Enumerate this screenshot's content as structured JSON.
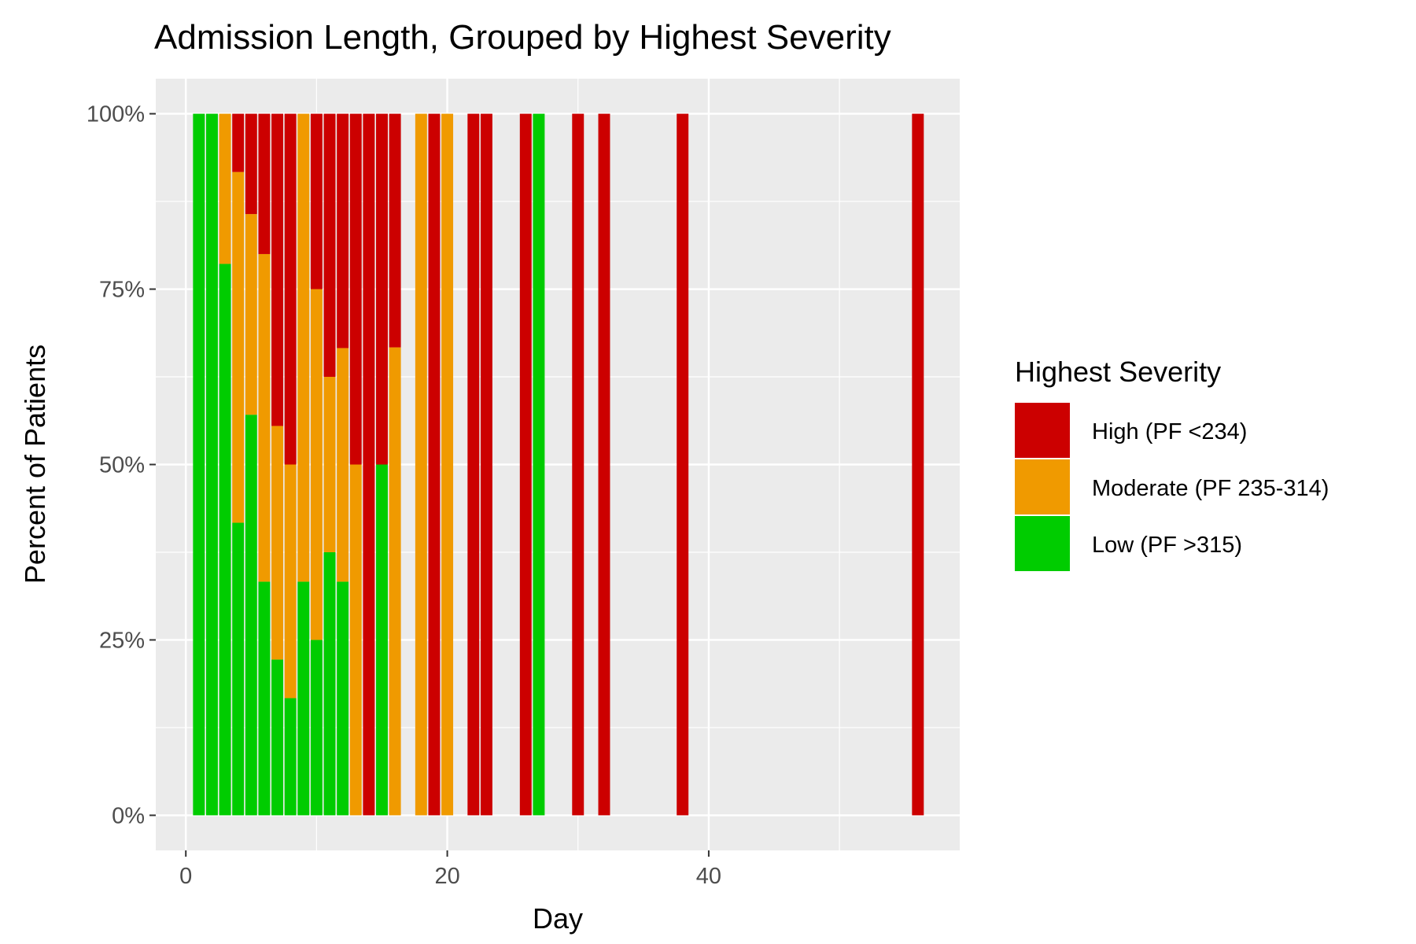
{
  "chart_data": {
    "type": "bar",
    "stacked": "percent",
    "title": "Admission Length, Grouped by Highest Severity",
    "xlabel": "Day",
    "ylabel": "Percent of Patients",
    "xlim": [
      -2.3,
      59.2
    ],
    "ylim": [
      -0.05,
      1.05
    ],
    "x_ticks": [
      0,
      20,
      40
    ],
    "x_tick_labels": [
      "0",
      "20",
      "40"
    ],
    "y_ticks": [
      0,
      0.25,
      0.5,
      0.75,
      1.0
    ],
    "y_tick_labels": [
      "0%",
      "25%",
      "50%",
      "75%",
      "100%"
    ],
    "grid": true,
    "legend": {
      "title": "Highest Severity",
      "position": "right",
      "entries": [
        "High (PF <234)",
        "Moderate (PF 235-314)",
        "Low (PF >315)"
      ]
    },
    "colors": {
      "High (PF <234)": "#CC0000",
      "Moderate (PF 235-314)": "#F09A00",
      "Low (PF >315)": "#00CC00",
      "panel": "#EBEBEB",
      "grid": "#FFFFFF"
    },
    "stack_order": [
      "Low (PF >315)",
      "Moderate (PF 235-314)",
      "High (PF <234)"
    ],
    "categories": [
      1,
      2,
      3,
      4,
      5,
      6,
      7,
      8,
      9,
      10,
      11,
      12,
      13,
      14,
      15,
      16,
      18,
      19,
      20,
      22,
      23,
      26,
      27,
      30,
      32,
      38,
      56
    ],
    "series": [
      {
        "name": "Low (PF >315)",
        "values": [
          1.0,
          1.0,
          0.786,
          0.417,
          0.571,
          0.333,
          0.222,
          0.167,
          0.333,
          0.25,
          0.375,
          0.333,
          0.0,
          0.0,
          0.5,
          0.0,
          0.0,
          0.0,
          0.0,
          0.0,
          0.0,
          0.0,
          1.0,
          0.0,
          0.0,
          0.0,
          0.0
        ]
      },
      {
        "name": "Moderate (PF 235-314)",
        "values": [
          0.0,
          0.0,
          0.214,
          0.5,
          0.286,
          0.467,
          0.333,
          0.333,
          0.667,
          0.5,
          0.25,
          0.333,
          0.5,
          0.0,
          0.0,
          0.667,
          1.0,
          0.0,
          1.0,
          0.0,
          0.0,
          0.0,
          0.0,
          0.0,
          0.0,
          0.0,
          0.0
        ]
      },
      {
        "name": "High (PF <234)",
        "values": [
          0.0,
          0.0,
          0.0,
          0.083,
          0.143,
          0.2,
          0.445,
          0.5,
          0.0,
          0.25,
          0.375,
          0.334,
          0.5,
          1.0,
          0.5,
          0.333,
          0.0,
          1.0,
          0.0,
          1.0,
          1.0,
          1.0,
          0.0,
          1.0,
          1.0,
          1.0,
          1.0
        ]
      }
    ]
  }
}
